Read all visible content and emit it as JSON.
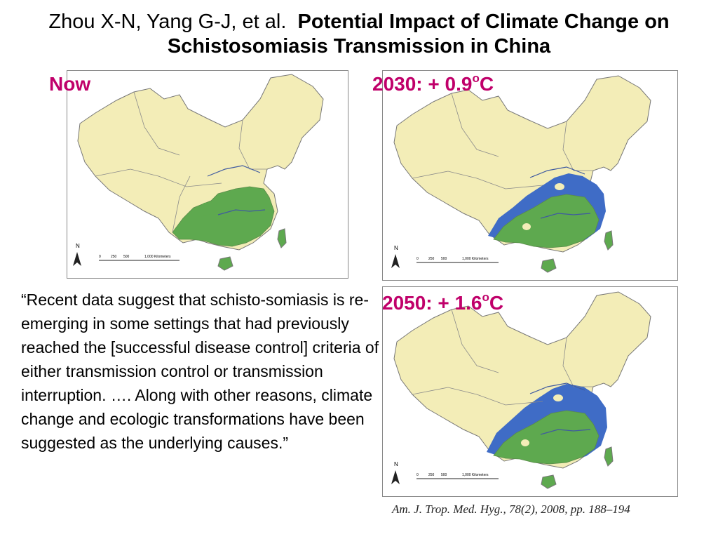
{
  "title": {
    "authors": "Zhou X-N, Yang G-J, et al.",
    "article": "Potential Impact of Climate Change on Schistosomiasis Transmission in China"
  },
  "maps": [
    {
      "label_main": "Now",
      "label_sup": "",
      "label_suffix": ""
    },
    {
      "label_main": "2030: + 0.9",
      "label_sup": "o",
      "label_suffix": "C"
    },
    {
      "label_main": "2050: + 1.6",
      "label_sup": "o",
      "label_suffix": "C"
    }
  ],
  "map_common": {
    "north": "N",
    "scale_ticks": [
      "0",
      "250",
      "500",
      "1,000 Kilometers"
    ]
  },
  "colors": {
    "land": "#f3edb7",
    "current_range": "#5ea94f",
    "projected_expansion": "#3f6cc6",
    "label": "#c0006a"
  },
  "quote": "“Recent data suggest that schisto-somiasis is re-emerging in some settings that had previously reached the [successful disease control] criteria of either transmission control or transmission interruption. …. Along with other reasons, climate change and ecologic transformations have been suggested as the underlying causes.”",
  "citation": "Am. J. Trop. Med. Hyg., 78(2), 2008, pp. 188–194"
}
